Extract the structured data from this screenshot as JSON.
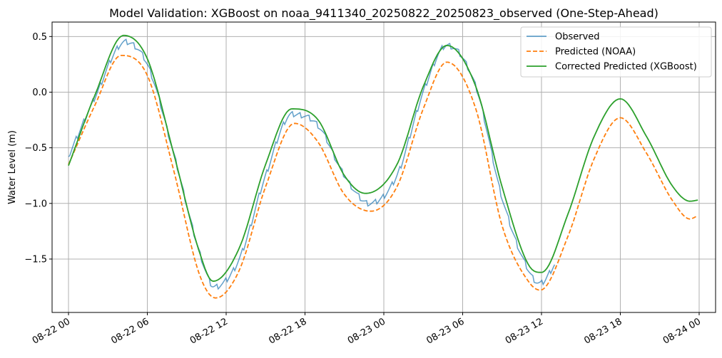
{
  "chart_data": {
    "type": "line",
    "title": "Model Validation: XGBoost on noaa_9411340_20250822_20250823_observed (One-Step-Ahead)",
    "xlabel": "",
    "ylabel": "Water Level (m)",
    "x_unit": "datetime",
    "xlim": [
      "2025-08-21 22:45",
      "2025-08-24 01:15"
    ],
    "ylim": [
      -1.98,
      0.63
    ],
    "x_ticks": [
      {
        "value": "2025-08-22 00:00",
        "label": "08-22 00"
      },
      {
        "value": "2025-08-22 06:00",
        "label": "08-22 06"
      },
      {
        "value": "2025-08-22 12:00",
        "label": "08-22 12"
      },
      {
        "value": "2025-08-22 18:00",
        "label": "08-22 18"
      },
      {
        "value": "2025-08-23 00:00",
        "label": "08-23 00"
      },
      {
        "value": "2025-08-23 06:00",
        "label": "08-23 06"
      },
      {
        "value": "2025-08-23 12:00",
        "label": "08-23 12"
      },
      {
        "value": "2025-08-23 18:00",
        "label": "08-23 18"
      },
      {
        "value": "2025-08-24 00:00",
        "label": "08-24 00"
      }
    ],
    "y_ticks": [
      {
        "value": 0.5,
        "label": "0.5"
      },
      {
        "value": 0.0,
        "label": "0.0"
      },
      {
        "value": -0.5,
        "label": "−0.5"
      },
      {
        "value": -1.0,
        "label": "−1.0"
      },
      {
        "value": -1.5,
        "label": "−1.5"
      }
    ],
    "grid": true,
    "legend_position": "top-right",
    "series": [
      {
        "name": "Observed",
        "color": "#1f77b4",
        "style": "solid",
        "x": [
          "2025-08-22 00:00",
          "2025-08-22 02:00",
          "2025-08-22 04:18",
          "2025-08-22 06:00",
          "2025-08-22 08:00",
          "2025-08-22 10:00",
          "2025-08-22 11:06",
          "2025-08-22 13:00",
          "2025-08-22 15:00",
          "2025-08-22 17:00",
          "2025-08-22 19:00",
          "2025-08-22 21:00",
          "2025-08-22 22:54",
          "2025-08-23 01:00",
          "2025-08-23 03:00",
          "2025-08-23 04:48",
          "2025-08-23 07:00",
          "2025-08-23 09:00",
          "2025-08-23 11:00",
          "2025-08-23 11:54",
          "2025-08-23 13:00"
        ],
        "y": [
          -0.58,
          -0.05,
          0.45,
          0.25,
          -0.55,
          -1.45,
          -1.75,
          -1.5,
          -0.75,
          -0.2,
          -0.3,
          -0.75,
          -1.0,
          -0.75,
          0.0,
          0.42,
          0.05,
          -0.95,
          -1.6,
          -1.72,
          -1.55
        ]
      },
      {
        "name": "Predicted (NOAA)",
        "color": "#ff7f0e",
        "style": "dashed",
        "x": [
          "2025-08-22 00:00",
          "2025-08-22 02:00",
          "2025-08-22 04:00",
          "2025-08-22 06:00",
          "2025-08-22 08:00",
          "2025-08-22 10:00",
          "2025-08-22 11:12",
          "2025-08-22 13:00",
          "2025-08-22 15:00",
          "2025-08-22 17:12",
          "2025-08-22 19:00",
          "2025-08-22 21:00",
          "2025-08-22 23:00",
          "2025-08-23 01:00",
          "2025-08-23 03:00",
          "2025-08-23 04:48",
          "2025-08-23 07:00",
          "2025-08-23 09:00",
          "2025-08-23 11:00",
          "2025-08-23 11:54",
          "2025-08-23 14:00",
          "2025-08-23 16:00",
          "2025-08-23 18:00",
          "2025-08-23 20:00",
          "2025-08-23 22:00",
          "2025-08-23 23:18",
          "2025-08-23 23:54"
        ],
        "y": [
          -0.65,
          -0.12,
          0.33,
          0.15,
          -0.7,
          -1.65,
          -1.85,
          -1.6,
          -0.85,
          -0.28,
          -0.45,
          -0.92,
          -1.07,
          -0.85,
          -0.15,
          0.27,
          -0.15,
          -1.2,
          -1.7,
          -1.78,
          -1.3,
          -0.6,
          -0.23,
          -0.55,
          -0.98,
          -1.14,
          -1.11
        ]
      },
      {
        "name": "Corrected Predicted (XGBoost)",
        "color": "#2ca02c",
        "style": "solid",
        "x": [
          "2025-08-22 00:00",
          "2025-08-22 02:00",
          "2025-08-22 04:12",
          "2025-08-22 06:00",
          "2025-08-22 08:00",
          "2025-08-22 10:00",
          "2025-08-22 11:00",
          "2025-08-22 13:00",
          "2025-08-22 15:00",
          "2025-08-22 17:00",
          "2025-08-22 19:00",
          "2025-08-22 21:00",
          "2025-08-22 22:36",
          "2025-08-23 01:00",
          "2025-08-23 03:00",
          "2025-08-23 04:48",
          "2025-08-23 07:00",
          "2025-08-23 09:00",
          "2025-08-23 11:00",
          "2025-08-23 12:00",
          "2025-08-23 14:00",
          "2025-08-23 16:00",
          "2025-08-23 18:00",
          "2025-08-23 20:00",
          "2025-08-23 22:00",
          "2025-08-23 23:18",
          "2025-08-23 23:54"
        ],
        "y": [
          -0.66,
          -0.03,
          0.51,
          0.3,
          -0.55,
          -1.45,
          -1.7,
          -1.4,
          -0.65,
          -0.15,
          -0.25,
          -0.75,
          -0.91,
          -0.65,
          0.05,
          0.42,
          0.05,
          -0.85,
          -1.55,
          -1.62,
          -1.1,
          -0.4,
          -0.06,
          -0.4,
          -0.85,
          -0.98,
          -0.97
        ]
      }
    ]
  }
}
